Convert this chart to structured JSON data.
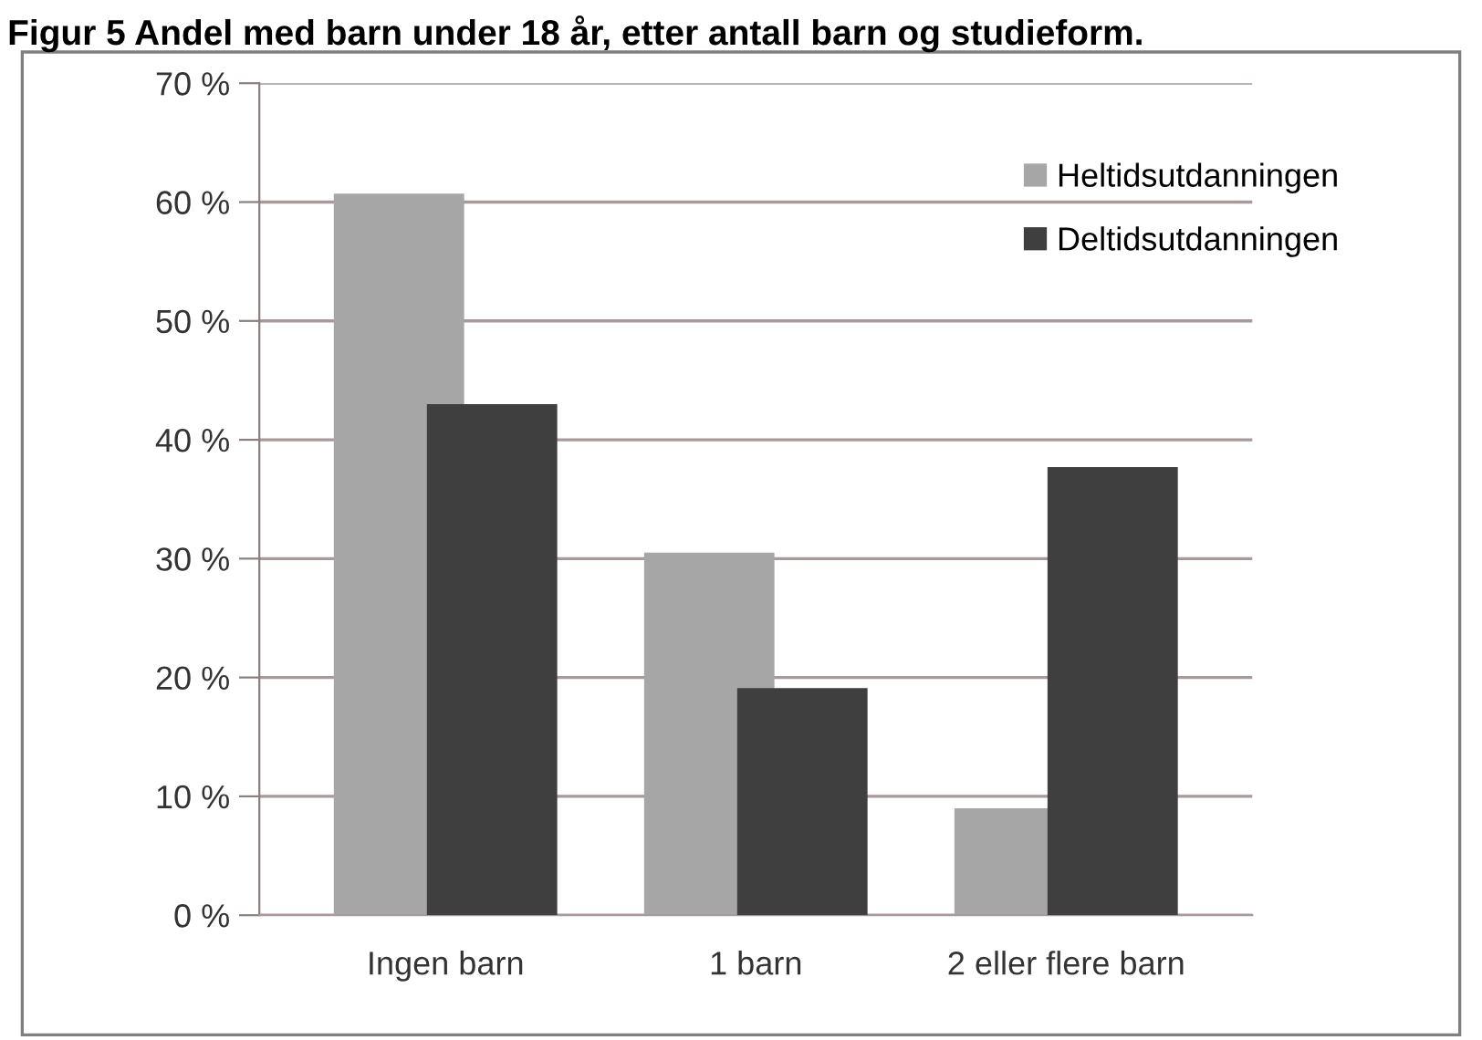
{
  "chart_data": {
    "type": "bar",
    "title": "Figur 5 Andel med barn under 18 år, etter antall barn og studieform.",
    "categories": [
      "Ingen barn",
      "1 barn",
      "2 eller flere barn"
    ],
    "series": [
      {
        "name": "Heltidsutdanningen",
        "color": "#a6a6a6",
        "values": [
          60.7,
          30.5,
          9.0
        ]
      },
      {
        "name": "Deltidsutdanningen",
        "color": "#3f3f3f",
        "values": [
          43.0,
          19.1,
          37.7
        ]
      }
    ],
    "ylim": [
      0,
      70
    ],
    "yticks": [
      {
        "value": 0,
        "label": "0 %"
      },
      {
        "value": 10,
        "label": "10 %"
      },
      {
        "value": 20,
        "label": "20 %"
      },
      {
        "value": 30,
        "label": "30 %"
      },
      {
        "value": 40,
        "label": "40 %"
      },
      {
        "value": 50,
        "label": "50 %"
      },
      {
        "value": 60,
        "label": "60 %"
      },
      {
        "value": 70,
        "label": "70 %"
      }
    ],
    "grid": "y",
    "legend": "top right"
  }
}
